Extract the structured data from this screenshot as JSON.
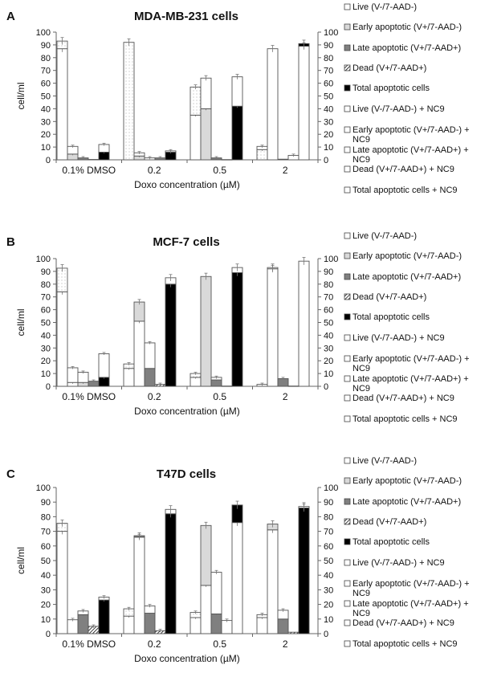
{
  "chart_data": {
    "type": "bar",
    "stacked": true,
    "categories": [
      "0.1% DMSO",
      "0.2",
      "0.5",
      "2"
    ],
    "xlabel": "Doxo concentration (µM)",
    "ylabel": "cell/ml",
    "ylim": [
      0,
      100
    ],
    "yticks": [
      "0",
      "10",
      "20",
      "30",
      "40",
      "50",
      "60",
      "70",
      "80",
      "90",
      "100"
    ],
    "fill_colors": {
      "white": "#ffffff",
      "dotted": "#f4f4f4",
      "lightgray": "#d9d9d9",
      "darkgray": "#808080",
      "hatched": "#bbbbbb",
      "black": "#000000"
    },
    "legend": [
      {
        "label": "Live (V-/7-AAD-)",
        "fill": "white"
      },
      {
        "label": "Early apoptotic (V+/7-AAD-)",
        "fill": "lightgray"
      },
      {
        "label": "Late apoptotic (V+/7-AAD+)",
        "fill": "darkgray"
      },
      {
        "label": "Dead (V+/7-AAD+)",
        "fill": "hatched"
      },
      {
        "label": "Total apoptotic cells",
        "fill": "black"
      },
      {
        "label": "Live (V-/7-AAD-) + NC9",
        "fill": "white"
      },
      {
        "label": "Early apoptotic (V+/7-AAD-) +",
        "label2": "NC9",
        "fill": "white"
      },
      {
        "label": "Late apoptotic (V+/7-AAD+) +",
        "label2": "NC9",
        "fill": "white"
      },
      {
        "label": "Dead (V+/7-AAD+) + NC9",
        "fill": "white"
      },
      {
        "label": "Total apoptotic cells + NC9",
        "fill": "white"
      }
    ],
    "panels": [
      {
        "letter": "A",
        "title": "MDA-MB-231 cells",
        "groups": [
          [
            [
              [
                "white",
                87
              ],
              [
                "dotted",
                93
              ]
            ],
            [
              [
                "lightgray",
                4.5
              ],
              [
                "white",
                10.5
              ]
            ],
            [
              [
                "darkgray",
                1.5
              ]
            ],
            [
              [
                "hatched",
                0.3
              ]
            ],
            [
              [
                "black",
                6
              ],
              [
                "white",
                12
              ]
            ]
          ],
          [
            [
              [
                "dotted",
                92
              ]
            ],
            [
              [
                "lightgray",
                3
              ],
              [
                "white",
                5.5
              ]
            ],
            [
              [
                "white",
                1.5
              ]
            ],
            [
              [
                "darkgray",
                1.5
              ]
            ],
            [
              [
                "black",
                6
              ],
              [
                "white",
                7
              ]
            ]
          ],
          [
            [
              [
                "white",
                35
              ],
              [
                "dotted",
                57
              ]
            ],
            [
              [
                "lightgray",
                40
              ],
              [
                "white",
                64
              ]
            ],
            [
              [
                "darkgray",
                1.5
              ]
            ],
            [
              [
                "hatched",
                0.2
              ]
            ],
            [
              [
                "black",
                42
              ],
              [
                "white",
                65
              ]
            ]
          ],
          [
            [
              [
                "dotted",
                8
              ],
              [
                "white",
                10.5
              ]
            ],
            [
              [
                "white",
                87
              ]
            ],
            [
              [
                "darkgray",
                0.5
              ]
            ],
            [
              [
                "white",
                3.5
              ]
            ],
            [
              [
                "white",
                89
              ],
              [
                "black",
                91
              ]
            ]
          ]
        ]
      },
      {
        "letter": "B",
        "title": "MCF-7 cells",
        "groups": [
          [
            [
              [
                "white",
                74
              ],
              [
                "dotted",
                92.5
              ]
            ],
            [
              [
                "white",
                3
              ],
              [
                "white",
                14.5
              ]
            ],
            [
              [
                "lightgray",
                3
              ],
              [
                "white",
                11
              ]
            ],
            [
              [
                "darkgray",
                4
              ]
            ],
            [
              [
                "black",
                7
              ],
              [
                "white",
                25.5
              ]
            ]
          ],
          [
            [
              [
                "white",
                14
              ],
              [
                "dotted",
                17.5
              ]
            ],
            [
              [
                "white",
                51
              ],
              [
                "lightgray",
                66
              ]
            ],
            [
              [
                "darkgray",
                14
              ],
              [
                "white",
                34
              ]
            ],
            [
              [
                "hatched",
                1.5
              ]
            ],
            [
              [
                "black",
                80
              ],
              [
                "white",
                85
              ]
            ]
          ],
          [
            [
              [
                "white",
                7
              ],
              [
                "dotted",
                10
              ]
            ],
            [
              [
                "lightgray",
                86
              ]
            ],
            [
              [
                "darkgray",
                5
              ],
              [
                "white",
                7
              ]
            ],
            [
              [
                "hatched",
                0.2
              ]
            ],
            [
              [
                "black",
                89
              ],
              [
                "white",
                93
              ]
            ]
          ],
          [
            [
              [
                "white",
                1.5
              ]
            ],
            [
              [
                "white",
                92
              ],
              [
                "dotted",
                93
              ]
            ],
            [
              [
                "darkgray",
                6
              ]
            ],
            [
              [
                "hatched",
                0.2
              ]
            ],
            [
              [
                "white",
                98
              ]
            ]
          ]
        ]
      },
      {
        "letter": "C",
        "title": "T47D cells",
        "groups": [
          [
            [
              [
                "white",
                70
              ],
              [
                "dotted",
                75.5
              ]
            ],
            [
              [
                "white",
                9.5
              ]
            ],
            [
              [
                "darkgray",
                13
              ],
              [
                "white",
                15.5
              ]
            ],
            [
              [
                "hatched",
                5
              ]
            ],
            [
              [
                "black",
                23
              ],
              [
                "white",
                25
              ]
            ]
          ],
          [
            [
              [
                "white",
                12
              ],
              [
                "dotted",
                17
              ]
            ],
            [
              [
                "white",
                66
              ],
              [
                "darkgray",
                67
              ]
            ],
            [
              [
                "darkgray",
                14
              ],
              [
                "white",
                19
              ]
            ],
            [
              [
                "hatched",
                2
              ]
            ],
            [
              [
                "black",
                82
              ],
              [
                "white",
                85
              ]
            ]
          ],
          [
            [
              [
                "white",
                11
              ],
              [
                "dotted",
                14.5
              ]
            ],
            [
              [
                "white",
                33
              ],
              [
                "lightgray",
                74
              ]
            ],
            [
              [
                "darkgray",
                13.5
              ],
              [
                "white",
                42
              ]
            ],
            [
              [
                "white",
                9
              ]
            ],
            [
              [
                "white",
                76
              ],
              [
                "black",
                88
              ]
            ]
          ],
          [
            [
              [
                "white",
                11
              ],
              [
                "white",
                13
              ]
            ],
            [
              [
                "white",
                71
              ],
              [
                "lightgray",
                75
              ]
            ],
            [
              [
                "darkgray",
                10
              ],
              [
                "white",
                16
              ]
            ],
            [
              [
                "hatched",
                1
              ]
            ],
            [
              [
                "black",
                86
              ],
              [
                "white",
                87
              ]
            ]
          ]
        ]
      }
    ]
  }
}
